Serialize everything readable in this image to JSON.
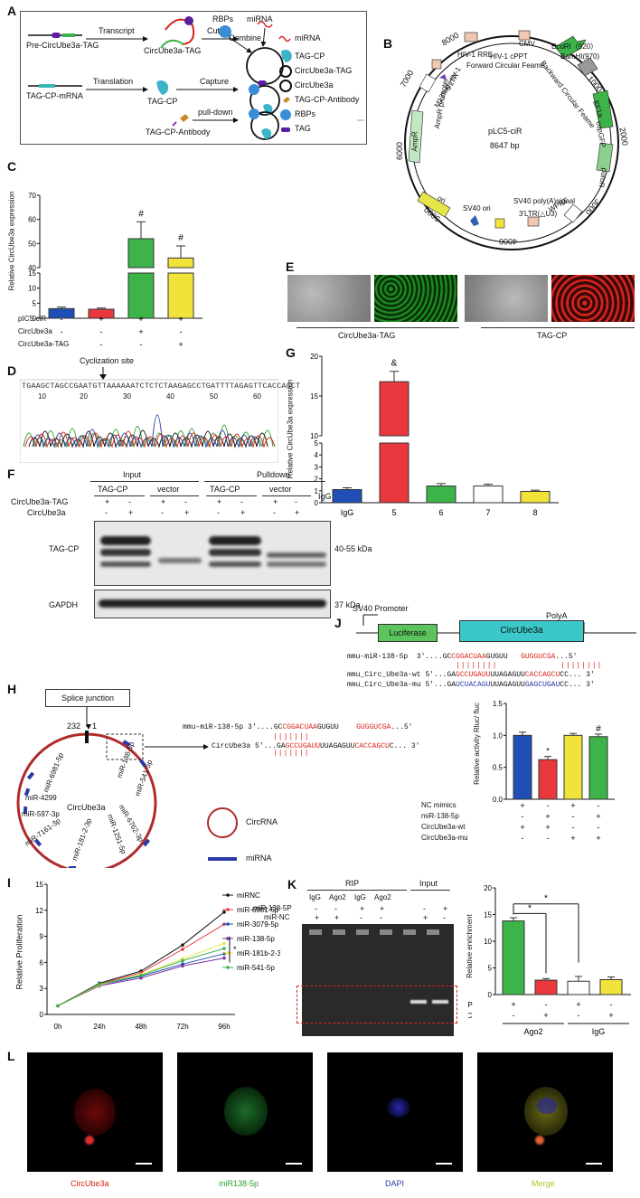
{
  "panels": {
    "A": "A",
    "B": "B",
    "C": "C",
    "D": "D",
    "E": "E",
    "F": "F",
    "G": "G",
    "H": "H",
    "I": "I",
    "J": "J",
    "K": "K",
    "L": "L"
  },
  "A": {
    "pre": "Pre-CircUbe3a-TAG",
    "transcript": "Transcript",
    "cut": "Cut",
    "circtag": "CircUbe3a-TAG",
    "rbps_top": "RBPs",
    "mirna_top": "miRNA",
    "combine": "Combine",
    "tagcp_mrna": "TAG-CP-mRNA",
    "translation": "Translation",
    "tagcp": "TAG-CP",
    "capture": "Capture",
    "pulldown": "pull-down",
    "antibody": "TAG-CP-Antibody",
    "legend": [
      "miRNA",
      "TAG-CP",
      "CircUbe3a-TAG",
      "CircUbe3a",
      "TAG-CP-Antibody",
      "RBPs",
      "TAG"
    ]
  },
  "B": {
    "name": "pLC5-ciR",
    "size": "8647 bp",
    "ticks": [
      "1000",
      "2000",
      "3000",
      "4000",
      "5000",
      "6000",
      "7000",
      "8000"
    ],
    "features": [
      "EcoRI（920）",
      "BamHI(970)",
      "CMV",
      "HIV-1 cPPT",
      "HIV-1 RRE",
      "5'LTR",
      "M13fwd HIV-1",
      "Forward Circular Feame",
      "Backward Circular Feame",
      "EF1a",
      "copGFP",
      "puroR",
      "WPRE",
      "3'LTR(△U3)",
      "SV40 poly(A)signal",
      "SV40 ori",
      "ori",
      "AmpR",
      "AmpR promoter"
    ]
  },
  "C": {
    "ylabel": "Relative CircUbe3a expression",
    "ticks_low": [
      "0",
      "5",
      "10",
      "15"
    ],
    "ticks_high": [
      "40",
      "50",
      "60",
      "70"
    ],
    "rows": [
      "pIC5-ciR",
      "CircUbe3a",
      "CircUbe3a-TAG"
    ],
    "marks": [
      "#",
      "#"
    ],
    "table": [
      [
        "-",
        "+",
        "+",
        "+"
      ],
      [
        "-",
        "-",
        "+",
        "-"
      ],
      [
        "-",
        "-",
        "-",
        "+"
      ]
    ]
  },
  "chart_data": [
    {
      "type": "bar",
      "panel": "C",
      "categories": [
        "1",
        "2",
        "3",
        "4"
      ],
      "values": [
        3.2,
        3.0,
        52,
        44
      ],
      "errors": [
        0.5,
        0.4,
        7,
        5
      ],
      "colors": [
        "#1f4fb4",
        "#e8383d",
        "#3cb44a",
        "#f2e33b"
      ],
      "ylabel": "Relative CircUbe3a expression",
      "broken_axis": [
        15,
        40
      ],
      "ylim": [
        0,
        70
      ]
    },
    {
      "type": "bar",
      "panel": "G",
      "categories": [
        "IgG",
        "5",
        "6",
        "7",
        "8"
      ],
      "values": [
        1.1,
        16.8,
        1.4,
        1.4,
        0.95
      ],
      "errors": [
        0.15,
        1.3,
        0.2,
        0.15,
        0.1
      ],
      "colors": [
        "#1f4fb4",
        "#e8383d",
        "#3cb44a",
        "#ffffff",
        "#f2e33b"
      ],
      "ylabel": "Relative CircUbe3a expression",
      "broken_axis": [
        5,
        10
      ],
      "ylim": [
        0,
        20
      ]
    },
    {
      "type": "bar",
      "panel": "J",
      "categories": [
        "1",
        "2",
        "3",
        "4"
      ],
      "values": [
        1.0,
        0.62,
        1.0,
        0.98
      ],
      "errors": [
        0.05,
        0.05,
        0.03,
        0.04
      ],
      "colors": [
        "#1f4fb4",
        "#e8383d",
        "#f2e33b",
        "#3cb44a"
      ],
      "ylabel": "Relative activity Rluc/ fluc",
      "ylim": [
        0,
        1.5
      ]
    },
    {
      "type": "line",
      "panel": "I",
      "x": [
        "0h",
        "24h",
        "48h",
        "72h",
        "96h"
      ],
      "ylabel": "Relative Proliferation",
      "ylim": [
        0,
        15
      ],
      "series": [
        {
          "name": "miRNC",
          "color": "#111111",
          "values": [
            1,
            3.6,
            5.0,
            8.0,
            11.8
          ]
        },
        {
          "name": "miR-6981-5p",
          "color": "#e8383d",
          "values": [
            1,
            3.5,
            4.8,
            7.5,
            10.4
          ]
        },
        {
          "name": "miR-3079-5p",
          "color": "#1f4fb4",
          "values": [
            1,
            3.4,
            4.4,
            5.8,
            7.0
          ]
        },
        {
          "name": "miR-138-5p",
          "color": "#7b2fa0",
          "values": [
            1,
            3.3,
            4.2,
            5.6,
            6.5
          ]
        },
        {
          "name": "miR-181b-2-3p",
          "color": "#e6e64a",
          "values": [
            1,
            3.4,
            4.6,
            6.4,
            8.2
          ]
        },
        {
          "name": "miR-541-5p",
          "color": "#3cb44a",
          "values": [
            1,
            3.5,
            4.5,
            6.2,
            7.6
          ]
        }
      ]
    },
    {
      "type": "bar",
      "panel": "K",
      "categories": [
        "1",
        "2",
        "3",
        "4"
      ],
      "values": [
        13.8,
        2.7,
        2.5,
        2.8
      ],
      "errors": [
        0.6,
        0.3,
        0.9,
        0.5
      ],
      "colors": [
        "#3cb44a",
        "#e8383d",
        "#ffffff",
        "#f2e33b"
      ],
      "ylabel": "Relative enrichment",
      "ylim": [
        0,
        20
      ]
    }
  ],
  "D": {
    "title": "Cyclization site",
    "sequence": "TGAAGCTAGCCGAATGTTAAAAAATCTCTCTAAGAGCCTGATTTTAGAGTTCACCAGCT",
    "positions": [
      "10",
      "20",
      "30",
      "40",
      "50",
      "60"
    ]
  },
  "E": {
    "label1": "CircUbe3a-TAG",
    "label2": "TAG-CP"
  },
  "F": {
    "input": "Input",
    "pulldown": "Pulldown",
    "groups": [
      "TAG-CP",
      "vector",
      "TAG-CP",
      "vector"
    ],
    "igg": "IgG",
    "row1": "CircUbe3a-TAG",
    "row2": "CircUbe3a",
    "signs1": [
      "+",
      "-",
      "+",
      "-",
      "+",
      "-",
      "+",
      "-"
    ],
    "signs2": [
      "-",
      "+",
      "-",
      "+",
      "-",
      "+",
      "-",
      "+"
    ],
    "blot1": "TAG-CP",
    "blot2": "GAPDH",
    "kda1": "40-55 kDa",
    "kda2": "37 kDa"
  },
  "G": {
    "ylabel": "Relative CircUbe3a expression",
    "ticks_low": [
      "0",
      "1",
      "2",
      "3",
      "4",
      "5"
    ],
    "ticks_high": [
      "10",
      "15",
      "20"
    ],
    "categories": [
      "IgG",
      "5",
      "6",
      "7",
      "8"
    ],
    "mark": "&"
  },
  "H": {
    "splice": "Splice junction",
    "n232": "232",
    "n1": "1",
    "center": "CircUbe3a",
    "mirs": [
      "miR-138-5p",
      "miR-541-5p",
      "miR-6981-5p",
      "miR-4299",
      "miR-597-3p",
      "miR-7161-3p",
      "miR-181-2-3p",
      "miR-1251-5p",
      "miR-6762-3p"
    ],
    "seq_top_name": "mmu-miR-138-5p",
    "seq_top_a": "3'....GC",
    "seq_top_b": "CGGACUAA",
    "seq_top_c": "GUGUU",
    "seq_top_d": "GUGGUCGA",
    "seq_top_e": "...5'",
    "seq_bot_name": "CircUbe3a",
    "seq_bot_a": "5'...GA",
    "seq_bot_b": "GCCUGAUU",
    "seq_bot_c": "UUAGAGUU",
    "seq_bot_d": "CACCAGCU",
    "seq_bot_e": "C... 3'",
    "legend1": "CircRNA",
    "legend2": "miRNA"
  },
  "I": {
    "ylabel": "Relative Proliferation",
    "yticks": [
      "0",
      "3",
      "6",
      "9",
      "12",
      "15"
    ],
    "xticks": [
      "0h",
      "24h",
      "48h",
      "72h",
      "96h"
    ],
    "star": "*"
  },
  "J": {
    "promoter": "SV40 Promoter",
    "polya": "PolyA",
    "luciferase": "Luciferase",
    "circ": "CircUbe3a",
    "r1_name": "mmu-miR-138-5p",
    "r1_a": "3'....GC",
    "r1_b": "CGGACUAA",
    "r1_c": "GUGUU",
    "r1_d": "GUGGUCGA",
    "r1_e": "...5'",
    "r2_name": "mmu_Circ_Ube3a-wt",
    "r2_a": "5'...GA",
    "r2_b": "GCCUGAUU",
    "r2_c": "UUAGAGUU",
    "r2_d": "CACCAGCU",
    "r2_e": "CC... 3'",
    "r3_name": "mmu_Circ_Ube3a-mu",
    "r3_a": "5'...GA",
    "r3_b": "UCUACAGU",
    "r3_c": "UUAGAGUU",
    "r3_d": "GAGCUGAU",
    "r3_e": "CC... 3'",
    "ylabel": "Relative activity Rluc/ fluc",
    "yticks": [
      "0.0",
      "0.5",
      "1.0",
      "1.5"
    ],
    "marks": [
      "*",
      "#"
    ],
    "rows": [
      "NC mimics",
      "miR-138-5p",
      "CircUbe3a-wt",
      "CircUbe3a-mu"
    ],
    "table": [
      [
        "+",
        "-",
        "+",
        "-"
      ],
      [
        "-",
        "+",
        "-",
        "+"
      ],
      [
        "+",
        "+",
        "-",
        "-"
      ],
      [
        "-",
        "-",
        "+",
        "+"
      ]
    ]
  },
  "K": {
    "rip": "RIP",
    "input": "Input",
    "lanes": [
      "IgG",
      "Ago2",
      "IgG",
      "Ago2"
    ],
    "row1": "miR-138-5P",
    "row2": "miR-NC",
    "signs1": [
      "-",
      "-",
      "+",
      "+",
      "-",
      "+"
    ],
    "signs2": [
      "+",
      "+",
      "-",
      "-",
      "+",
      "-"
    ],
    "ylabel": "Relative enrichment",
    "yticks": [
      "0",
      "5",
      "10",
      "15",
      "20"
    ],
    "stars": [
      "*",
      "*"
    ],
    "brow1": "miR-138-5P",
    "brow2": "miR-NC",
    "bsigns1": [
      "+",
      "-",
      "+",
      "-"
    ],
    "bsigns2": [
      "-",
      "+",
      "-",
      "+"
    ],
    "grp1": "Ago2",
    "grp2": "IgG"
  },
  "L": {
    "labels": [
      "CircUbe3a",
      "miR138-5p",
      "DAPI",
      "Merge"
    ]
  }
}
